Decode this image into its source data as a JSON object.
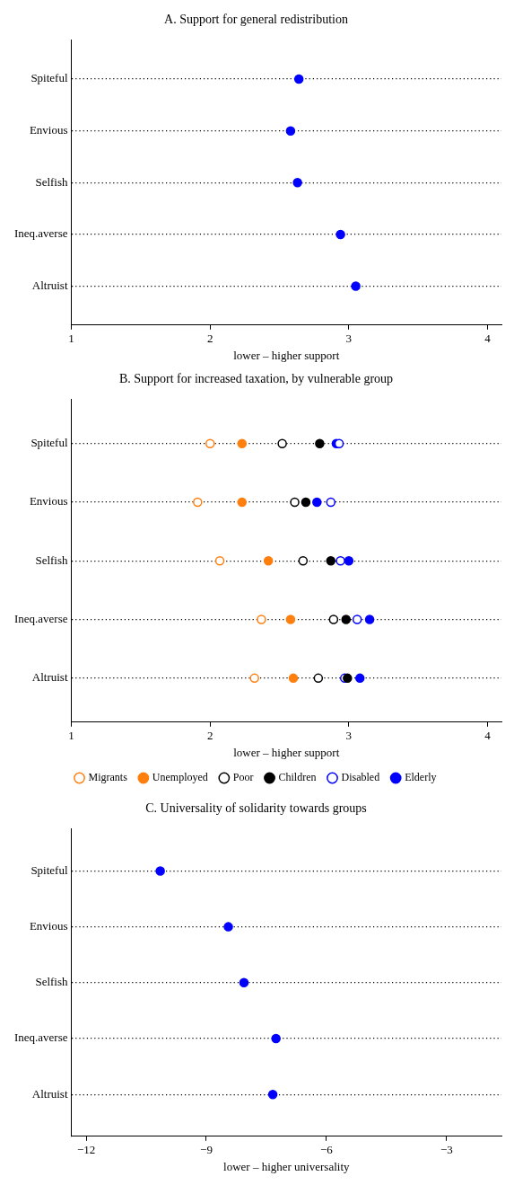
{
  "chart_data": [
    {
      "type": "scatter",
      "orientation": "horizontal",
      "title": "A. Support for general redistribution",
      "xlabel": "lower – higher support",
      "categories": [
        "Spiteful",
        "Envious",
        "Selfish",
        "Ineq.averse",
        "Altruist"
      ],
      "values": [
        2.64,
        2.58,
        2.63,
        2.94,
        3.05
      ],
      "color": "#0000ff",
      "xlim": [
        1,
        4.1
      ],
      "xticks": [
        1,
        2,
        3,
        4
      ],
      "grid": "y",
      "marker": "circle"
    },
    {
      "type": "scatter",
      "orientation": "horizontal",
      "title": "B. Support for increased taxation, by vulnerable group",
      "xlabel": "lower – higher support",
      "categories": [
        "Spiteful",
        "Envious",
        "Selfish",
        "Ineq.averse",
        "Altruist"
      ],
      "series": [
        {
          "name": "Migrants",
          "color": "#ff7f0e",
          "marker": "circle-open",
          "values": [
            2.0,
            1.91,
            2.07,
            2.37,
            2.32
          ]
        },
        {
          "name": "Unemployed",
          "color": "#ff7f0e",
          "marker": "circle",
          "values": [
            2.23,
            2.23,
            2.42,
            2.58,
            2.6
          ]
        },
        {
          "name": "Poor",
          "color": "#000000",
          "marker": "circle-open",
          "values": [
            2.52,
            2.61,
            2.67,
            2.89,
            2.78
          ]
        },
        {
          "name": "Children",
          "color": "#000000",
          "marker": "circle",
          "values": [
            2.79,
            2.69,
            2.87,
            2.98,
            2.99
          ]
        },
        {
          "name": "Disabled",
          "color": "#0000ff",
          "marker": "circle-open",
          "values": [
            2.93,
            2.87,
            2.94,
            3.06,
            2.97
          ]
        },
        {
          "name": "Elderly",
          "color": "#0000ff",
          "marker": "circle",
          "values": [
            2.91,
            2.77,
            3.0,
            3.15,
            3.08
          ]
        }
      ],
      "xlim": [
        1,
        4.1
      ],
      "xticks": [
        1,
        2,
        3,
        4
      ],
      "grid": "y",
      "marker": "circle",
      "legend": "bottom"
    },
    {
      "type": "scatter",
      "orientation": "horizontal",
      "title": "C. Universality of solidarity towards groups",
      "xlabel": "lower – higher universality",
      "categories": [
        "Spiteful",
        "Envious",
        "Selfish",
        "Ineq.averse",
        "Altruist"
      ],
      "values": [
        -10.15,
        -8.45,
        -8.06,
        -7.26,
        -7.34
      ],
      "color": "#0000ff",
      "xlim": [
        -12.37,
        -1.63
      ],
      "xticks": [
        -12,
        -9,
        -6,
        -3
      ],
      "grid": "y",
      "marker": "circle"
    }
  ]
}
